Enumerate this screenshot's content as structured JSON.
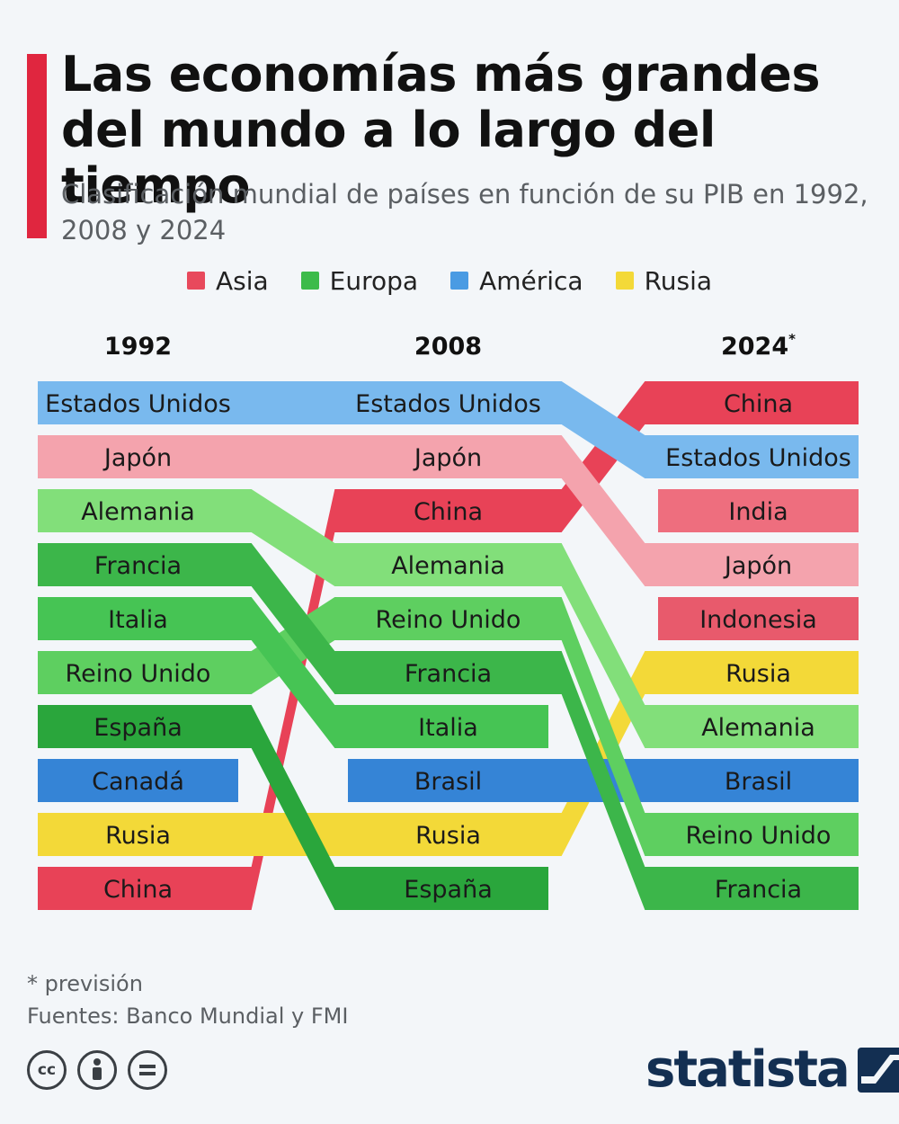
{
  "header": {
    "title": "Las economías más grandes del mundo a lo largo del tiempo",
    "subtitle": "Clasificación mundial de países en función de su PIB en 1992, 2008 y 2024"
  },
  "legend": [
    {
      "label": "Asia",
      "color": "#e8495c"
    },
    {
      "label": "Europa",
      "color": "#3dbb4a"
    },
    {
      "label": "América",
      "color": "#4a9be3"
    },
    {
      "label": "Rusia",
      "color": "#f3d938"
    }
  ],
  "chart_data": {
    "type": "table",
    "columns": [
      "1992",
      "2008",
      "2024*"
    ],
    "rankings": {
      "1992": [
        "Estados Unidos",
        "Japón",
        "Alemania",
        "Francia",
        "Italia",
        "Reino Unido",
        "España",
        "Canadá",
        "Rusia",
        "China"
      ],
      "2008": [
        "Estados Unidos",
        "Japón",
        "China",
        "Alemania",
        "Reino Unido",
        "Francia",
        "Italia",
        "Brasil",
        "Rusia",
        "España"
      ],
      "2024*": [
        "China",
        "Estados Unidos",
        "India",
        "Japón",
        "Indonesia",
        "Rusia",
        "Alemania",
        "Brasil",
        "Reino Unido",
        "Francia"
      ]
    },
    "regions": {
      "Estados Unidos": "América",
      "Canadá": "América",
      "Brasil": "América",
      "Japón": "Asia",
      "China": "Asia",
      "India": "Asia",
      "Indonesia": "Asia",
      "Alemania": "Europa",
      "Francia": "Europa",
      "Italia": "Europa",
      "Reino Unido": "Europa",
      "España": "Europa",
      "Rusia": "Rusia"
    },
    "colors": {
      "Estados Unidos": "#79b9ee",
      "Canadá": "#3584d6",
      "Brasil": "#3584d6",
      "Japón": "#f4a3ad",
      "China": "#e84257",
      "India": "#ee6e7e",
      "Indonesia": "#e85a6c",
      "Alemania": "#82df7a",
      "Francia": "#3cb64a",
      "Italia": "#46c454",
      "Reino Unido": "#5ecf60",
      "España": "#2aa63c",
      "Rusia": "#f3d938"
    }
  },
  "footer": {
    "note": "* previsión",
    "sources": "Fuentes: Banco Mundial y FMI",
    "brand": "statista",
    "license_icons": [
      "cc-icon",
      "by-icon",
      "nd-icon"
    ]
  }
}
